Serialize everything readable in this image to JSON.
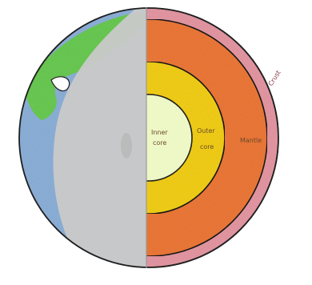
{
  "diagram": {
    "labels": {
      "inner_core_line1": "Inner",
      "inner_core_line2": "core",
      "outer_core_line1": "Outer",
      "outer_core_line2": "core",
      "mantle": "Mantle",
      "crust": "Crust"
    },
    "colors": {
      "crust": "#e89aa6",
      "mantle": "#f07a3a",
      "outer_core": "#f6d21a",
      "inner_core": "#eef7c6",
      "ocean": "#8fb3dc",
      "land": "#6ccd55",
      "shadow": "#c9c9c9",
      "outline": "#1f1f1f"
    }
  }
}
